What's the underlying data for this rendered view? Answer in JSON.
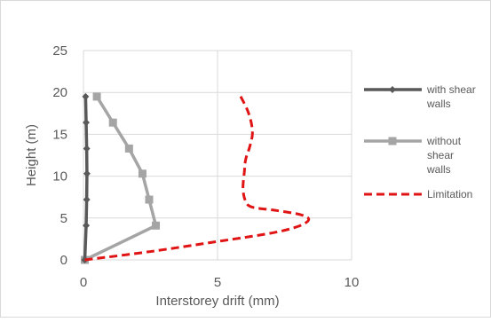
{
  "chart_data": {
    "type": "line",
    "title": "",
    "xlabel": "Interstorey drift (mm)",
    "ylabel": "Height (m)",
    "xlim": [
      0,
      10
    ],
    "ylim": [
      0,
      25
    ],
    "x_ticks": [
      "0",
      "5",
      "10"
    ],
    "y_ticks": [
      "0",
      "5",
      "10",
      "15",
      "20",
      "25"
    ],
    "grid": true,
    "legend_position": "right",
    "series": [
      {
        "name": "with shear walls",
        "color": "#595959",
        "style": "solid",
        "marker": "diamond",
        "points": [
          [
            0.05,
            0
          ],
          [
            0.1,
            4.1
          ],
          [
            0.12,
            7.2
          ],
          [
            0.13,
            10.3
          ],
          [
            0.12,
            13.3
          ],
          [
            0.1,
            16.4
          ],
          [
            0.08,
            19.5
          ]
        ]
      },
      {
        "name": "without shear walls",
        "color": "#a5a5a5",
        "style": "solid",
        "marker": "square",
        "points": [
          [
            0.05,
            0
          ],
          [
            2.7,
            4.1
          ],
          [
            2.45,
            7.2
          ],
          [
            2.2,
            10.3
          ],
          [
            1.7,
            13.3
          ],
          [
            1.1,
            16.4
          ],
          [
            0.5,
            19.5
          ]
        ]
      },
      {
        "name": "Limitation",
        "color": "#e01414",
        "style": "dashed",
        "marker": "none",
        "points": [
          [
            0.05,
            0
          ],
          [
            2.5,
            1.0
          ],
          [
            5.0,
            2.2
          ],
          [
            7.0,
            3.2
          ],
          [
            8.0,
            4.0
          ],
          [
            8.4,
            4.8
          ],
          [
            8.1,
            5.4
          ],
          [
            7.2,
            5.9
          ],
          [
            6.3,
            6.3
          ],
          [
            6.05,
            7.0
          ],
          [
            5.95,
            8.5
          ],
          [
            6.0,
            10.5
          ],
          [
            6.05,
            12.0
          ],
          [
            6.2,
            13.5
          ],
          [
            6.3,
            15.0
          ],
          [
            6.25,
            16.5
          ],
          [
            6.1,
            18.0
          ],
          [
            5.85,
            19.6
          ]
        ]
      }
    ]
  }
}
